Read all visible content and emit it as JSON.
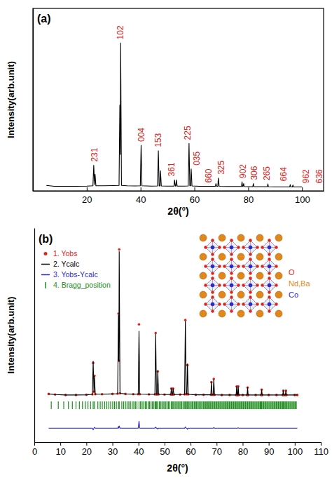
{
  "chart_data": [
    {
      "type": "line",
      "title": "(a)",
      "x_label": "2θ(°)",
      "y_label": "Intensity(arb.unit)",
      "color": "#000000",
      "x": [
        5,
        8,
        12,
        16,
        20,
        22.3,
        22.6,
        22.9,
        23.1,
        23.4,
        26,
        30,
        32,
        32.3,
        32.45,
        32.6,
        32.9,
        35,
        38,
        39.9,
        40.2,
        40.5,
        44,
        46.3,
        46.6,
        46.9,
        47.2,
        47.4,
        47.7,
        50,
        52.4,
        52.6,
        52.9,
        53.1,
        53.3,
        53.6,
        56,
        57.7,
        58,
        58.3,
        58.6,
        58.8,
        59.1,
        62,
        65,
        67.8,
        68,
        68.3,
        68.7,
        68.9,
        69.2,
        72,
        75,
        77.5,
        77.7,
        77.9,
        78.1,
        78.3,
        78.5,
        80,
        81.7,
        81.9,
        82.1,
        85,
        87.1,
        87.3,
        87.5,
        90,
        93,
        95.4,
        95.6,
        95.8,
        96.4,
        96.6,
        96.8,
        100
      ],
      "values": [
        3,
        2.5,
        2.5,
        2.5,
        2.6,
        2.8,
        14,
        3.5,
        9,
        2.8,
        2.8,
        2.9,
        3,
        47,
        20,
        81,
        3,
        2.8,
        2.7,
        2.8,
        25,
        2.8,
        2.6,
        2.7,
        22,
        2.7,
        2.7,
        11,
        2.7,
        2.6,
        2.6,
        6,
        2.6,
        2.6,
        6,
        2.6,
        2.6,
        2.7,
        26,
        2.8,
        2.8,
        12,
        2.7,
        2.5,
        2.5,
        2.5,
        4,
        2.5,
        2.5,
        7,
        2.5,
        2.4,
        2.4,
        2.4,
        5,
        2.4,
        2.4,
        4,
        2.4,
        2.3,
        2.3,
        4,
        2.3,
        2.3,
        2.3,
        3.8,
        2.3,
        2.2,
        2.2,
        2.2,
        3.4,
        2.2,
        2.2,
        3.2,
        2.2,
        2.2
      ],
      "xlim": [
        0,
        108
      ],
      "xticks": [
        20,
        40,
        60,
        80,
        100
      ],
      "ylim": [
        0,
        100
      ],
      "tick_labels": "x",
      "annotations": [
        {
          "text": "231",
          "x": 22.8,
          "color": "#d9261c"
        },
        {
          "text": "102",
          "x": 32.6,
          "color": "#d9261c"
        },
        {
          "text": "004",
          "x": 40.4,
          "color": "#d9261c"
        },
        {
          "text": "153",
          "x": 46.6,
          "color": "#d9261c"
        },
        {
          "text": "361",
          "x": 51.5,
          "color": "#d9261c"
        },
        {
          "text": "225",
          "x": 57.6,
          "color": "#d9261c"
        },
        {
          "text": "035",
          "x": 61,
          "color": "#d9261c"
        },
        {
          "text": "660",
          "x": 65.4,
          "color": "#d9261c"
        },
        {
          "text": "325",
          "x": 70,
          "color": "#d9261c"
        },
        {
          "text": "902",
          "x": 78.1,
          "color": "#d9261c"
        },
        {
          "text": "306",
          "x": 82.3,
          "color": "#d9261c"
        },
        {
          "text": "265",
          "x": 87,
          "color": "#d9261c"
        },
        {
          "text": "664",
          "x": 93.2,
          "color": "#d9261c"
        },
        {
          "text": "962",
          "x": 101.6,
          "color": "#d9261c"
        },
        {
          "text": "636",
          "x": 106.5,
          "color": "#d9261c"
        }
      ]
    },
    {
      "type": "line",
      "title": "(b)",
      "x_label": "2θ(°)",
      "y_label": "Intensity(arb.unit)",
      "x": [
        5.5,
        8,
        12,
        16,
        20,
        22.3,
        22.6,
        22.9,
        23.1,
        23.4,
        26,
        30,
        32,
        32.3,
        32.45,
        32.6,
        32.9,
        35,
        38,
        39.9,
        40.2,
        40.5,
        44,
        46.3,
        46.6,
        46.9,
        47.2,
        47.4,
        47.7,
        50,
        52.4,
        52.6,
        52.9,
        53.1,
        53.3,
        53.6,
        56,
        57.7,
        58,
        58.3,
        58.6,
        58.8,
        59.1,
        62,
        65,
        67.8,
        68,
        68.3,
        68.7,
        68.9,
        69.2,
        72,
        75,
        77.5,
        77.7,
        77.9,
        78.1,
        78.3,
        78.5,
        80,
        81.7,
        81.9,
        82.1,
        85,
        87.1,
        87.3,
        87.5,
        90,
        93,
        95.4,
        95.6,
        95.8,
        96.4,
        96.6,
        96.8,
        100,
        101
      ],
      "series": [
        {
          "name": "1. Yobs",
          "type": "scatter",
          "marker": "circle",
          "color": "#e3231b",
          "values": [
            22.5,
            22.2,
            22,
            22,
            22.1,
            22.3,
            37,
            23.5,
            31,
            22.4,
            22.4,
            22.5,
            22.6,
            60,
            38,
            90,
            22.8,
            22.5,
            22.4,
            22.4,
            55,
            22.4,
            22.3,
            22.3,
            51,
            22.3,
            22.3,
            33,
            22.3,
            22.2,
            22.2,
            25,
            22.2,
            22.2,
            25,
            22.2,
            22.2,
            22.3,
            57,
            22.4,
            22.4,
            36,
            22.3,
            22.1,
            22.1,
            22.1,
            28,
            22.1,
            22.1,
            29.5,
            22.1,
            22,
            22,
            22,
            26,
            22,
            22,
            26,
            22,
            22,
            22,
            25.5,
            22,
            22,
            22,
            24.5,
            22,
            22,
            22,
            22,
            24,
            22,
            22,
            24,
            22,
            22,
            22
          ]
        },
        {
          "name": "2. Ycalc",
          "type": "line",
          "color": "#000000",
          "values": [
            22.5,
            22.2,
            22,
            22,
            22.1,
            22.3,
            37.8,
            23.5,
            30.6,
            22.4,
            22.4,
            22.5,
            22.6,
            59.2,
            38,
            89,
            22.8,
            22.5,
            22.4,
            22.4,
            51.8,
            22.4,
            22.3,
            22.3,
            50.5,
            22.3,
            22.3,
            33.4,
            22.3,
            22.2,
            22.2,
            25,
            22.2,
            22.2,
            25,
            22.2,
            22.2,
            22.3,
            56.4,
            22.4,
            22.4,
            36.5,
            22.3,
            22.1,
            22.1,
            22.1,
            28,
            22.1,
            22.1,
            29.2,
            22.1,
            22,
            22,
            22,
            26,
            22,
            22,
            25.8,
            22,
            22,
            22,
            25.5,
            22,
            22,
            22,
            24.5,
            22,
            22,
            22,
            22,
            24,
            22,
            22,
            24,
            22,
            22,
            22
          ]
        },
        {
          "name": "3. Yobs-Ycalc",
          "type": "line",
          "color": "#2b2bd0",
          "values": [
            6.5,
            6.5,
            6.5,
            6.5,
            6.5,
            6.5,
            5.7,
            6.5,
            6.9,
            6.5,
            6.5,
            6.5,
            6.5,
            7.3,
            6.5,
            7.5,
            6.5,
            6.5,
            6.5,
            6.5,
            9.7,
            6.5,
            6.5,
            6.5,
            7,
            6.5,
            6.5,
            6.1,
            6.5,
            6.5,
            6.5,
            6.5,
            6.5,
            6.5,
            6.5,
            6.5,
            6.5,
            6.5,
            7.1,
            6.5,
            6.5,
            6,
            6.5,
            6.5,
            6.5,
            6.5,
            6.5,
            6.5,
            6.5,
            6.8,
            6.5,
            6.5,
            6.5,
            6.5,
            6.5,
            6.5,
            6.5,
            6.7,
            6.5,
            6.5,
            6.5,
            6.5,
            6.5,
            6.5,
            6.5,
            6.5,
            6.5,
            6.5,
            6.5,
            6.5,
            6.5,
            6.5,
            6.5,
            6.5,
            6.5,
            6.5,
            6.5
          ]
        },
        {
          "name": "4. Bragg_position",
          "type": "rug",
          "color": "#1e8c1e",
          "x": [
            6.5,
            9.2,
            11.3,
            13.1,
            14.6,
            16,
            17.3,
            18.5,
            19.6,
            20.6,
            21.6,
            22.6,
            23.1,
            24.4,
            25.3,
            26.1,
            27,
            27.8,
            28.6,
            29.3,
            30.1,
            30.8,
            31.5,
            32.3,
            32.6,
            33.6,
            34.3,
            35,
            35.6,
            36.3,
            36.9,
            37.6,
            38.2,
            38.8,
            39.4,
            40.2,
            40.8,
            41.4,
            42,
            42.6,
            43.1,
            43.7,
            44.2,
            44.8,
            45.3,
            45.9,
            46.4,
            46.6,
            47,
            47.4,
            48,
            48.5,
            49,
            49.5,
            50,
            50.5,
            51,
            51.5,
            52,
            52.6,
            53,
            53.3,
            53.8,
            54.3,
            54.8,
            55.2,
            55.7,
            56.2,
            56.6,
            57.1,
            57.6,
            58,
            58.4,
            58.8,
            59.3,
            59.7,
            60.2,
            60.6,
            61,
            61.5,
            61.9,
            62.3,
            62.8,
            63.2,
            63.6,
            64,
            64.4,
            64.9,
            65.3,
            65.7,
            66.1,
            66.5,
            66.9,
            67.3,
            67.7,
            68,
            68.5,
            68.9,
            69.3,
            69.7,
            70.1,
            70.5,
            70.9,
            71.3,
            71.7,
            72.1,
            72.5,
            72.9,
            73.3,
            73.7,
            74.1,
            74.5,
            74.9,
            75.3,
            75.7,
            76.1,
            76.5,
            76.9,
            77.3,
            77.7,
            78,
            78.3,
            78.7,
            79.1,
            79.5,
            79.9,
            80.3,
            80.7,
            81.1,
            81.5,
            81.9,
            82.3,
            82.7,
            83.1,
            83.5,
            83.9,
            84.3,
            84.7,
            85.1,
            85.5,
            85.9,
            86.3,
            86.7,
            87,
            87.3,
            87.7,
            88.1,
            88.5,
            88.9,
            89.3,
            89.7,
            90.1,
            90.5,
            90.9,
            91.3,
            91.7,
            92.1,
            92.5,
            92.9,
            93.3,
            93.7,
            94.1,
            94.5,
            94.9,
            95.3,
            95.6,
            96,
            96.3,
            96.6,
            97,
            97.4,
            97.8,
            98.2,
            98.6,
            99,
            99.4,
            99.8,
            100.2,
            100.6
          ]
        }
      ],
      "xlim": [
        0,
        110
      ],
      "xticks": [
        0,
        10,
        20,
        30,
        40,
        50,
        60,
        70,
        80,
        90,
        100,
        110
      ],
      "ylim": [
        0,
        100
      ],
      "tick_labels": "x",
      "legend": "upper left",
      "annotations": [
        {
          "text": "O",
          "color": "#e3231b"
        },
        {
          "text": "Nd,Ba",
          "color": "#e0891a"
        },
        {
          "text": "Co",
          "color": "#2b2bd0"
        }
      ]
    }
  ]
}
